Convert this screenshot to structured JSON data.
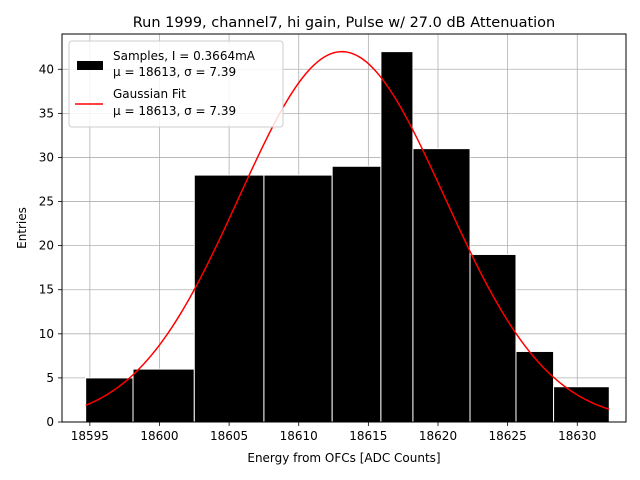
{
  "chart_data": {
    "type": "bar",
    "title": "Run 1999, channel7, hi gain, Pulse w/ 27.0 dB Attenuation",
    "xlabel": "Energy from OFCs [ADC Counts]",
    "ylabel": "Entries",
    "xlim": [
      18593.0,
      18633.5
    ],
    "ylim": [
      0,
      44
    ],
    "xticks": [
      "18595",
      "18600",
      "18605",
      "18610",
      "18615",
      "18620",
      "18625",
      "18630"
    ],
    "xtick_values": [
      18595,
      18600,
      18605,
      18610,
      18615,
      18620,
      18625,
      18630
    ],
    "yticks": [
      "0",
      "5",
      "10",
      "15",
      "20",
      "25",
      "30",
      "35",
      "40"
    ],
    "ytick_values": [
      0,
      5,
      10,
      15,
      20,
      25,
      30,
      35,
      40
    ],
    "grid": true,
    "legend_position": "top-left",
    "bins": [
      {
        "x0": 18594.7,
        "x1": 18598.1,
        "value": 5
      },
      {
        "x0": 18598.1,
        "x1": 18602.5,
        "value": 6
      },
      {
        "x0": 18602.5,
        "x1": 18607.5,
        "value": 28
      },
      {
        "x0": 18607.5,
        "x1": 18612.4,
        "value": 28
      },
      {
        "x0": 18612.4,
        "x1": 18615.9,
        "value": 29
      },
      {
        "x0": 18615.9,
        "x1": 18618.2,
        "value": 42
      },
      {
        "x0": 18618.2,
        "x1": 18622.3,
        "value": 31
      },
      {
        "x0": 18622.3,
        "x1": 18625.6,
        "value": 19
      },
      {
        "x0": 18625.6,
        "x1": 18628.3,
        "value": 8
      },
      {
        "x0": 18628.3,
        "x1": 18632.3,
        "value": 4
      }
    ],
    "fit": {
      "mu": 18613.1,
      "sigma": 7.39,
      "amplitude": 42,
      "x_start": 18594.7,
      "x_end": 18632.3
    },
    "series": [
      {
        "name": "Samples, I = 0.3664mA",
        "name_line2": "μ = 18613, σ = 7.39",
        "color": "#000000"
      },
      {
        "name": "Gaussian Fit",
        "name_line2": "μ = 18613, σ = 7.39",
        "color": "#ff0000"
      }
    ]
  }
}
